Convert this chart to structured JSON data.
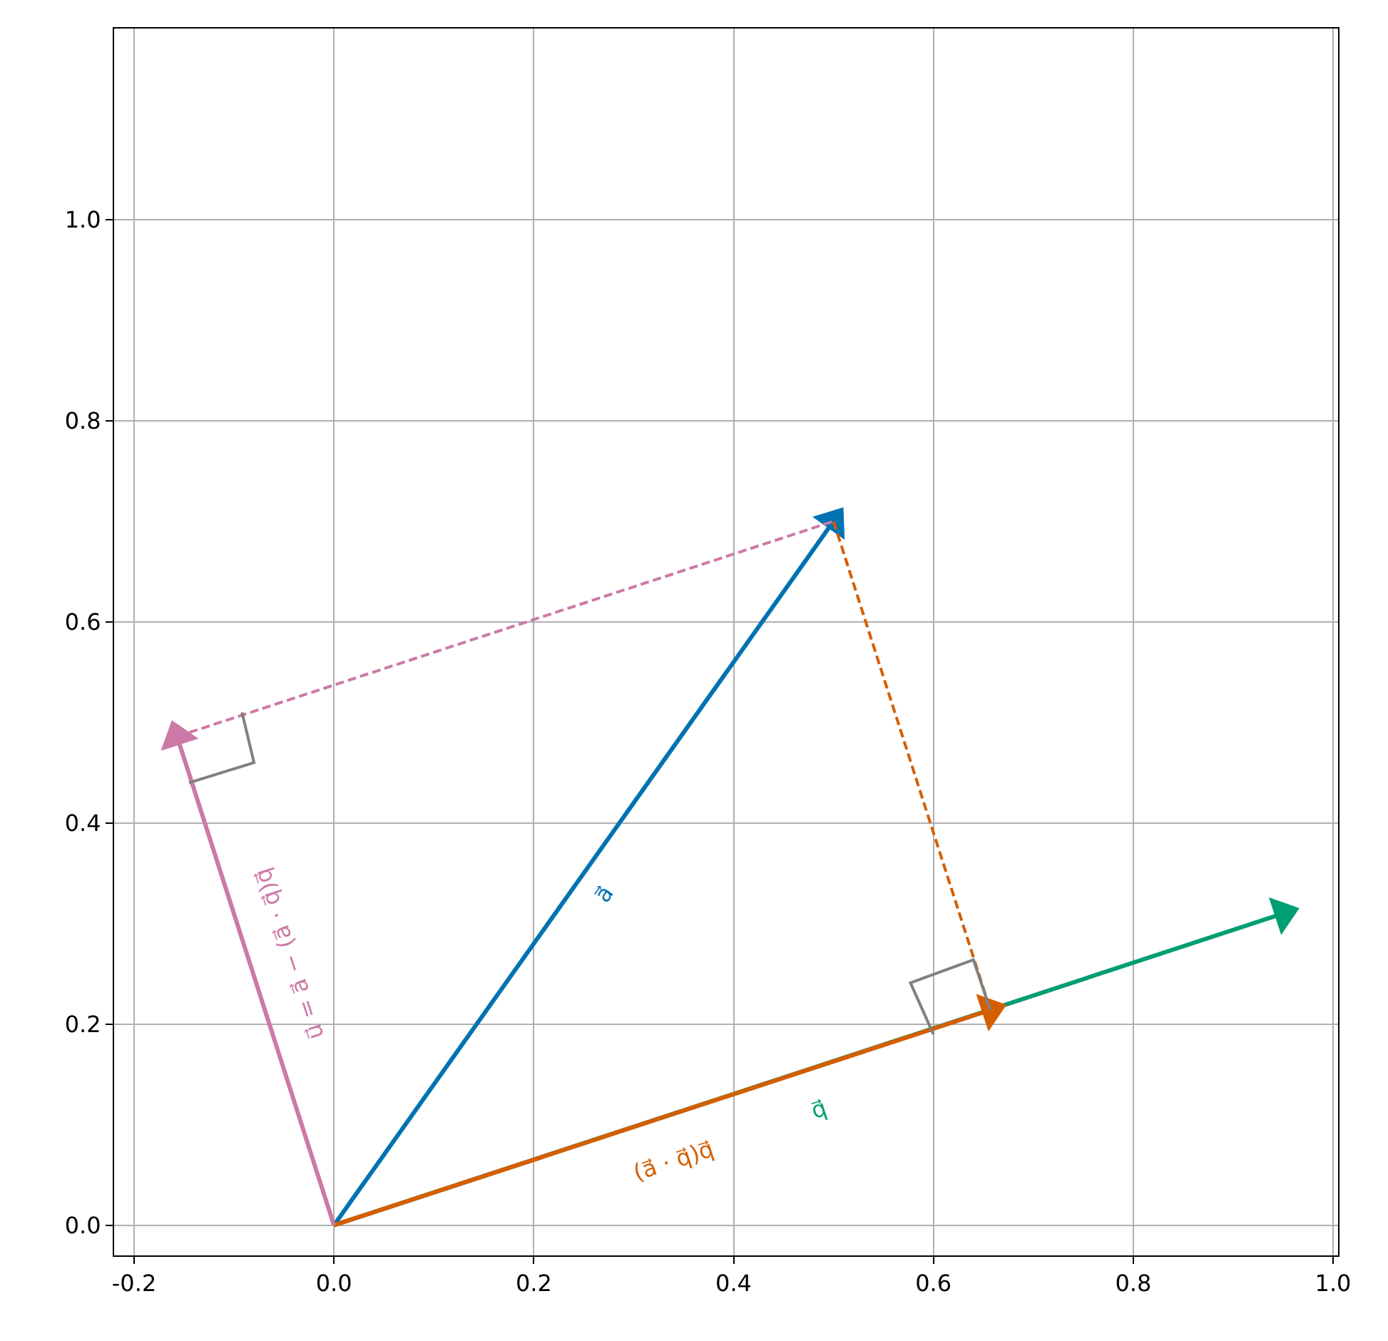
{
  "chart_data": {
    "type": "line",
    "xlim": [
      -0.22,
      1.005
    ],
    "ylim": [
      -0.03,
      1.19
    ],
    "xticks": [
      -0.2,
      {
        "value": 0,
        "label": "0.0"
      },
      0.2,
      0.4,
      0.6,
      0.8,
      {
        "value": 1,
        "label": "1.0"
      }
    ],
    "yticks": [
      {
        "value": 0,
        "label": "0.0"
      },
      0.2,
      0.4,
      0.6,
      0.8,
      {
        "value": 1,
        "label": "1.0"
      }
    ],
    "grid": true,
    "series": [
      {
        "color": "#009e73",
        "x": [
          0.0,
          0.95
        ],
        "values": [
          0.0,
          0.31
        ],
        "line_style": "solid",
        "marker": "triangle"
      },
      {
        "color": "#0072b2",
        "x": [
          0.0,
          0.5
        ],
        "values": [
          0.0,
          0.7
        ],
        "line_style": "solid",
        "marker": "triangle"
      },
      {
        "color": "#d55e00",
        "x": [
          0.0,
          0.657
        ],
        "values": [
          0.0,
          0.214
        ],
        "line_style": "solid",
        "marker": "triangle"
      },
      {
        "color": "#cc79a7",
        "x": [
          0.0,
          -0.157
        ],
        "values": [
          0.0,
          0.486
        ],
        "line_style": "solid",
        "marker": "triangle"
      },
      {
        "color": "#cc79a7",
        "x": [
          -0.157,
          0.5
        ],
        "values": [
          0.486,
          0.7
        ],
        "line_style": "dashed",
        "marker": "none"
      },
      {
        "color": "#d55e00",
        "x": [
          0.5,
          0.657
        ],
        "values": [
          0.7,
          0.214
        ],
        "line_style": "dashed",
        "marker": "none"
      },
      {
        "color": "#808080",
        "x": [
          -0.145,
          -0.08,
          -0.092
        ],
        "values": [
          0.44,
          0.46,
          0.51
        ],
        "line_style": "solid",
        "marker": "none"
      },
      {
        "color": "#808080",
        "x": [
          0.6,
          0.577,
          0.64,
          0.657
        ],
        "values": [
          0.19,
          0.241,
          0.264,
          0.214
        ],
        "line_style": "solid",
        "marker": "none"
      }
    ],
    "annotations": [
      "a⃗",
      "q⃗",
      "(a⃗ · q⃗)q⃗",
      "u⃗ = a⃗ − (a⃗ · q⃗)q⃗"
    ]
  }
}
